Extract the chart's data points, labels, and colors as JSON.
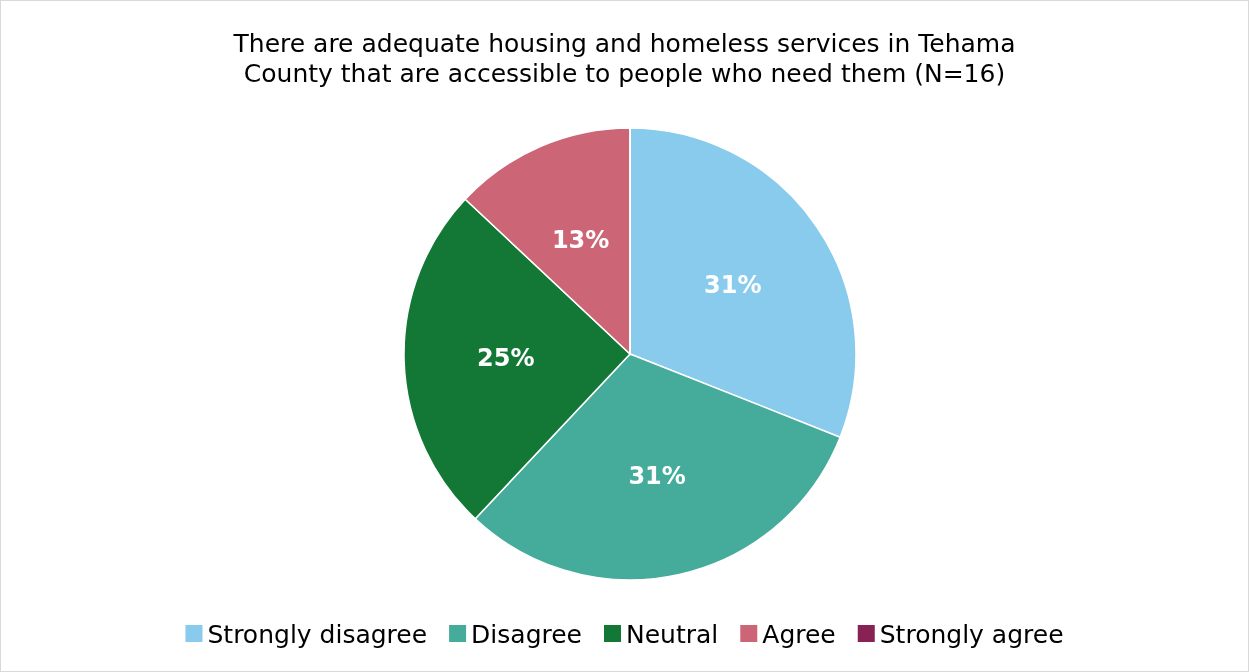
{
  "chart_data": {
    "type": "pie",
    "title": "There are adequate housing and homeless services in Tehama County that are accessible to people who need them (N=16)",
    "categories": [
      "Strongly disagree",
      "Disagree",
      "Neutral",
      "Agree",
      "Strongly agree"
    ],
    "values": [
      31,
      31,
      25,
      13,
      0
    ],
    "colors": [
      "#88cbed",
      "#45ab9b",
      "#137735",
      "#cc6677",
      "#882255"
    ],
    "value_labels": [
      "31%",
      "31%",
      "25%",
      "13%",
      null
    ],
    "legend": "bottom"
  }
}
